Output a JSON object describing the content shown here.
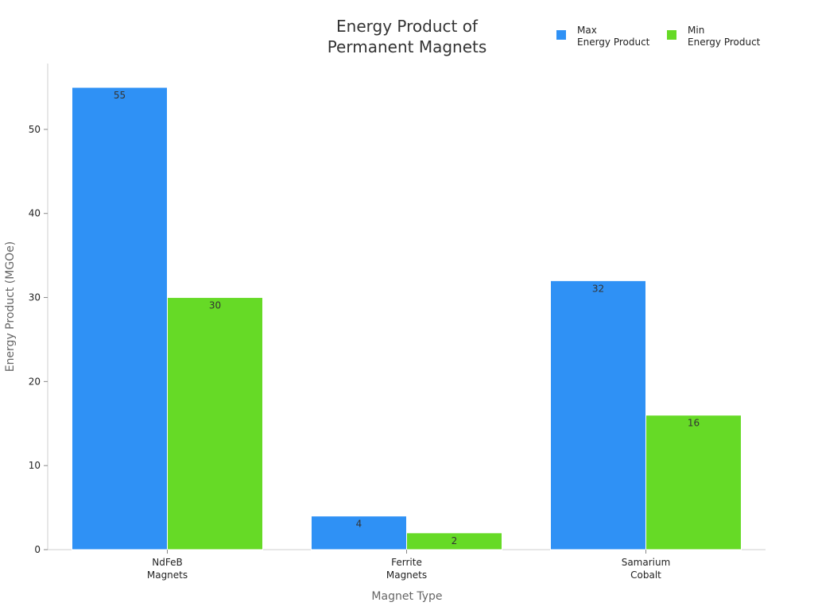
{
  "chart_data": {
    "type": "bar",
    "title": [
      "Energy Product of",
      "Permanent Magnets"
    ],
    "xlabel": "Magnet Type",
    "ylabel": "Energy Product (MGOe)",
    "categories": [
      [
        "NdFeB",
        "Magnets"
      ],
      [
        "Ferrite",
        "Magnets"
      ],
      [
        "Samarium",
        "Cobalt"
      ]
    ],
    "series": [
      {
        "name": [
          "Max",
          "Energy Product"
        ],
        "color": "#2f91f5",
        "values": [
          55,
          4,
          32
        ]
      },
      {
        "name": [
          "Min",
          "Energy Product"
        ],
        "color": "#66da26",
        "values": [
          30,
          2,
          16
        ]
      }
    ],
    "ylim": [
      0,
      55
    ],
    "yticks": [
      0,
      10,
      20,
      30,
      40,
      50
    ],
    "grid": false,
    "legend_position": "top-right",
    "data_labels": true
  }
}
